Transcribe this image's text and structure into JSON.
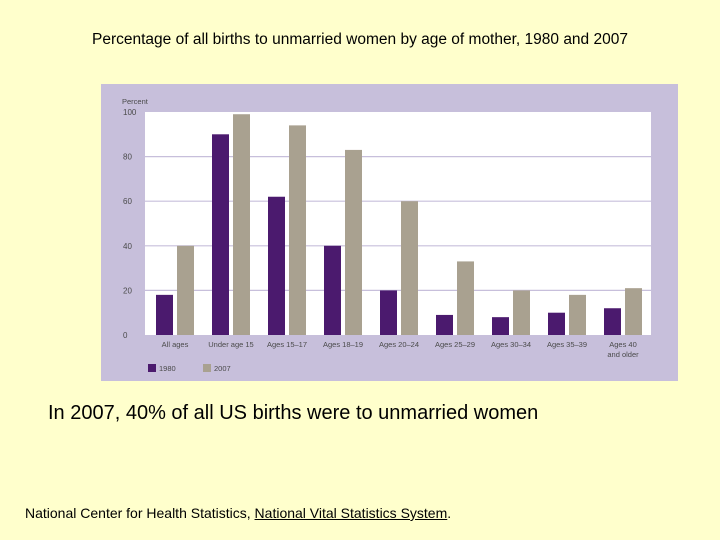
{
  "title": "Percentage of all births to unmarried women by age of mother, 1980 and 2007",
  "caption": "In 2007, 40% of all US births were to unmarried women",
  "source": {
    "text": "National Center for Health Statistics, ",
    "link": "National Vital Statistics System",
    "end": "."
  },
  "chart_data": {
    "type": "bar",
    "title": "Percentage of all births to unmarried women by age of mother, 1980 and 2007",
    "ylabel": "Percent",
    "xlabel": "",
    "ylim": [
      0,
      100
    ],
    "yticks": [
      0,
      20,
      40,
      60,
      80,
      100
    ],
    "grid": true,
    "legend_position": "bottom-left",
    "categories": [
      "All ages",
      "Under age 15",
      "Ages 15–17",
      "Ages 18–19",
      "Ages 20–24",
      "Ages 25–29",
      "Ages 30–34",
      "Ages 35–39",
      "Ages 40\nand older"
    ],
    "series": [
      {
        "name": "1980",
        "color": "#4b1a6e",
        "values": [
          18,
          90,
          62,
          40,
          20,
          9,
          8,
          10,
          12
        ]
      },
      {
        "name": "2007",
        "color": "#a9a190",
        "values": [
          40,
          99,
          94,
          83,
          60,
          33,
          20,
          18,
          21
        ]
      }
    ],
    "panel_color": "#c7bfdb",
    "background_color": "#ffffcc"
  }
}
